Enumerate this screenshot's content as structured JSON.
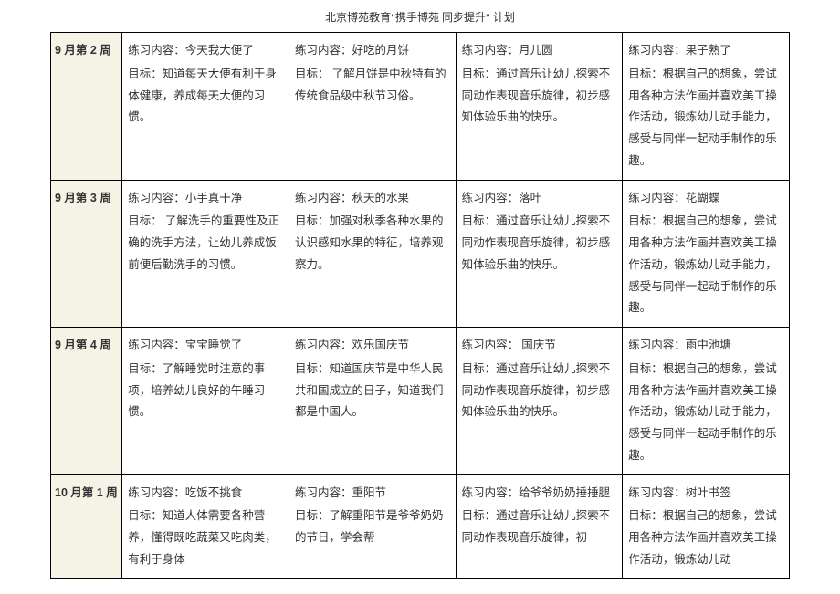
{
  "header": "北京博苑教育\"携手博苑  同步提升\"   计划",
  "rows": [
    {
      "week": "9 月第 2 周",
      "cells": [
        {
          "title": "练习内容：今天我大便了",
          "goal": "目标：知道每天大便有利于身体健康，养成每天大便的习惯。"
        },
        {
          "title": "练习内容：好吃的月饼",
          "goal": "目标： 了解月饼是中秋特有的传统食品级中秋节习俗。"
        },
        {
          "title": "练习内容：月儿圆",
          "goal": "目标：通过音乐让幼儿探索不同动作表现音乐旋律，初步感知体验乐曲的快乐。"
        },
        {
          "title": "练习内容：果子熟了",
          "goal": "目标：根据自己的想象，尝试用各种方法作画并喜欢美工操作活动，锻炼幼儿动手能力，感受与同伴一起动手制作的乐趣。"
        }
      ]
    },
    {
      "week": "9 月第 3 周",
      "cells": [
        {
          "title": "练习内容：小手真干净",
          "goal": "目标： 了解洗手的重要性及正确的洗手方法，让幼儿养成饭前便后勤洗手的习惯。"
        },
        {
          "title": "练习内容：秋天的水果",
          "goal": "目标：加强对秋季各种水果的认识感知水果的特征，培养观察力。"
        },
        {
          "title": "练习内容：落叶",
          "goal": "目标：通过音乐让幼儿探索不同动作表现音乐旋律，初步感知体验乐曲的快乐。"
        },
        {
          "title": "练习内容：花蝴蝶",
          "goal": "目标：根据自己的想象，尝试用各种方法作画并喜欢美工操作活动，锻炼幼儿动手能力，感受与同伴一起动手制作的乐趣。"
        }
      ]
    },
    {
      "week": "9 月第 4 周",
      "cells": [
        {
          "title": "练习内容：宝宝睡觉了",
          "goal": "目标：了解睡觉时注意的事项，培养幼儿良好的午睡习惯。"
        },
        {
          "title": "练习内容：欢乐国庆节",
          "goal": "目标：知道国庆节是中华人民共和国成立的日子，知道我们都是中国人。"
        },
        {
          "title": "练习内容： 国庆节",
          "goal": "目标：通过音乐让幼儿探索不同动作表现音乐旋律，初步感知体验乐曲的快乐。"
        },
        {
          "title": "练习内容：雨中池塘",
          "goal": "目标：根据自己的想象，尝试用各种方法作画并喜欢美工操作活动，锻炼幼儿动手能力，感受与同伴一起动手制作的乐趣。"
        }
      ]
    },
    {
      "week": "10 月第 1 周",
      "cells": [
        {
          "title": "练习内容：吃饭不挑食",
          "goal": "目标：知道人体需要各种营养，懂得既吃蔬菜又吃肉类，有利于身体"
        },
        {
          "title": "练习内容：重阳节",
          "goal": "目标：了解重阳节是爷爷奶奶的节日，学会帮"
        },
        {
          "title": "练习内容：给爷爷奶奶捶捶腿",
          "goal": "目标：通过音乐让幼儿探索不同动作表现音乐旋律，初"
        },
        {
          "title": "练习内容：树叶书签",
          "goal": "目标：根据自己的想象，尝试用各种方法作画并喜欢美工操作活动，锻炼幼儿动"
        }
      ]
    }
  ]
}
